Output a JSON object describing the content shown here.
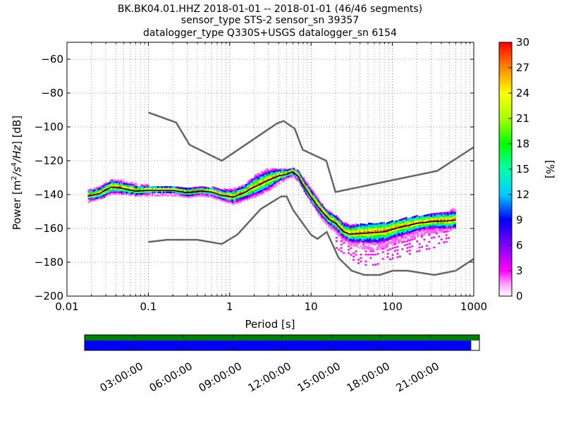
{
  "title_lines": [
    "BK.BK04.01.HHZ   2018-01-01 -- 2018-01-01  (46/46 segments)",
    "sensor_type STS-2 sensor_sn 39357",
    "datalogger_type Q330S+USGS datalogger_sn 6154"
  ],
  "colorbar": {
    "label": "[%]",
    "ticks": [
      0,
      3,
      6,
      9,
      12,
      15,
      18,
      21,
      24,
      27,
      30
    ],
    "range": [
      0,
      30
    ]
  },
  "timeline": {
    "tick_labels": [
      "03:00:00",
      "06:00:00",
      "09:00:00",
      "12:00:00",
      "15:00:00",
      "18:00:00",
      "21:00:00"
    ],
    "tick_hours": [
      3,
      6,
      9,
      12,
      15,
      18,
      21
    ],
    "range_hours": [
      0,
      24
    ],
    "coverage_colors": [
      "#008000",
      "#0000ff"
    ],
    "blue_coverage_end_hours": 23.5
  },
  "chart_data": {
    "type": "heatmap",
    "xlabel": "Period [s]",
    "ylabel_prefix": "Power [m",
    "ylabel_mid": "/s",
    "ylabel_mid2": "/Hz",
    "ylabel_suffix": "] [dB]",
    "ylabel_sup1": "2",
    "ylabel_sup2": "4",
    "xscale": "log",
    "xlim": [
      0.01,
      1000
    ],
    "ylim": [
      -200,
      -50
    ],
    "x_ticks": [
      0.01,
      0.1,
      1,
      10,
      100,
      1000
    ],
    "x_tick_labels": [
      "0.01",
      "0.1",
      "1",
      "10",
      "100",
      "1000"
    ],
    "y_ticks": [
      -200,
      -180,
      -160,
      -140,
      -120,
      -100,
      -80,
      -60
    ],
    "y_tick_labels": [
      "−200",
      "−180",
      "−160",
      "−140",
      "−120",
      "−100",
      "−80",
      "−60"
    ],
    "grid": "dotted",
    "nhnm": {
      "period": [
        0.1,
        0.22,
        0.32,
        0.8,
        3.8,
        4.6,
        6.3,
        7.9,
        15.4,
        20,
        354.8,
        1000
      ],
      "power": [
        -91.5,
        -97.4,
        -110.5,
        -120,
        -98,
        -96.5,
        -101,
        -113.5,
        -120,
        -138.5,
        -126,
        -112
      ]
    },
    "nlnm": {
      "period": [
        0.1,
        0.17,
        0.4,
        0.8,
        1.24,
        2.4,
        4.3,
        5,
        6,
        10,
        12,
        15.6,
        21.9,
        31.6,
        45,
        70,
        101,
        154,
        328,
        600,
        1000
      ],
      "power": [
        -168,
        -166.7,
        -166.7,
        -169.2,
        -163.7,
        -148.6,
        -141.1,
        -141.1,
        -149,
        -163.8,
        -166.2,
        -162.1,
        -177.5,
        -185,
        -187.5,
        -187.5,
        -185,
        -185,
        -187.5,
        -185,
        -178
      ]
    },
    "mode": {
      "period": [
        0.018,
        0.025,
        0.035,
        0.05,
        0.07,
        0.1,
        0.15,
        0.2,
        0.3,
        0.45,
        0.6,
        0.8,
        1.1,
        1.5,
        2,
        3,
        4,
        5,
        6,
        7,
        8,
        10,
        13,
        16,
        20,
        25,
        30,
        40,
        60,
        80,
        100,
        150,
        200,
        300,
        500,
        600
      ],
      "power": [
        -141,
        -139.5,
        -135.5,
        -136.5,
        -138,
        -137.5,
        -137.5,
        -137.5,
        -139,
        -138,
        -138.5,
        -140.5,
        -141.5,
        -139,
        -135.5,
        -131.5,
        -129,
        -128,
        -126.5,
        -129.5,
        -134.5,
        -141.5,
        -149,
        -154,
        -157,
        -162,
        -163.5,
        -163,
        -162.5,
        -162,
        -160.5,
        -158.5,
        -157,
        -156,
        -155.5,
        -155
      ]
    },
    "density_band": {
      "period": [
        0.018,
        0.025,
        0.035,
        0.05,
        0.07,
        0.1,
        0.15,
        0.2,
        0.3,
        0.45,
        0.6,
        0.8,
        1.1,
        1.5,
        2,
        3,
        4,
        5,
        6,
        7,
        8,
        10,
        13,
        16,
        20,
        25,
        30,
        40,
        60,
        80,
        100,
        150,
        200,
        300,
        500,
        600
      ],
      "upper": [
        -138,
        -135,
        -131,
        -132,
        -134,
        -135,
        -136,
        -136,
        -136,
        -136,
        -136,
        -137,
        -137,
        -134,
        -129,
        -125,
        -125,
        -125,
        -125,
        -126,
        -130,
        -137,
        -145,
        -150,
        -153,
        -157,
        -158,
        -158,
        -157,
        -157,
        -156,
        -154,
        -153,
        -152,
        -150,
        -148
      ],
      "lower": [
        -145,
        -143,
        -140,
        -140,
        -141,
        -141,
        -141,
        -141,
        -142,
        -141,
        -142,
        -144,
        -146,
        -144,
        -142,
        -138,
        -134,
        -131,
        -130,
        -133,
        -138,
        -146,
        -154,
        -159,
        -163,
        -168,
        -170,
        -172,
        -173,
        -172,
        -170,
        -167,
        -165,
        -163,
        -162,
        -160
      ]
    },
    "sparse_tail": {
      "period": [
        20,
        30,
        40,
        60,
        80,
        100,
        150,
        200,
        300,
        500
      ],
      "lower": [
        -172,
        -178,
        -182,
        -182,
        -180,
        -178,
        -176,
        -174,
        -172,
        -170
      ]
    }
  }
}
